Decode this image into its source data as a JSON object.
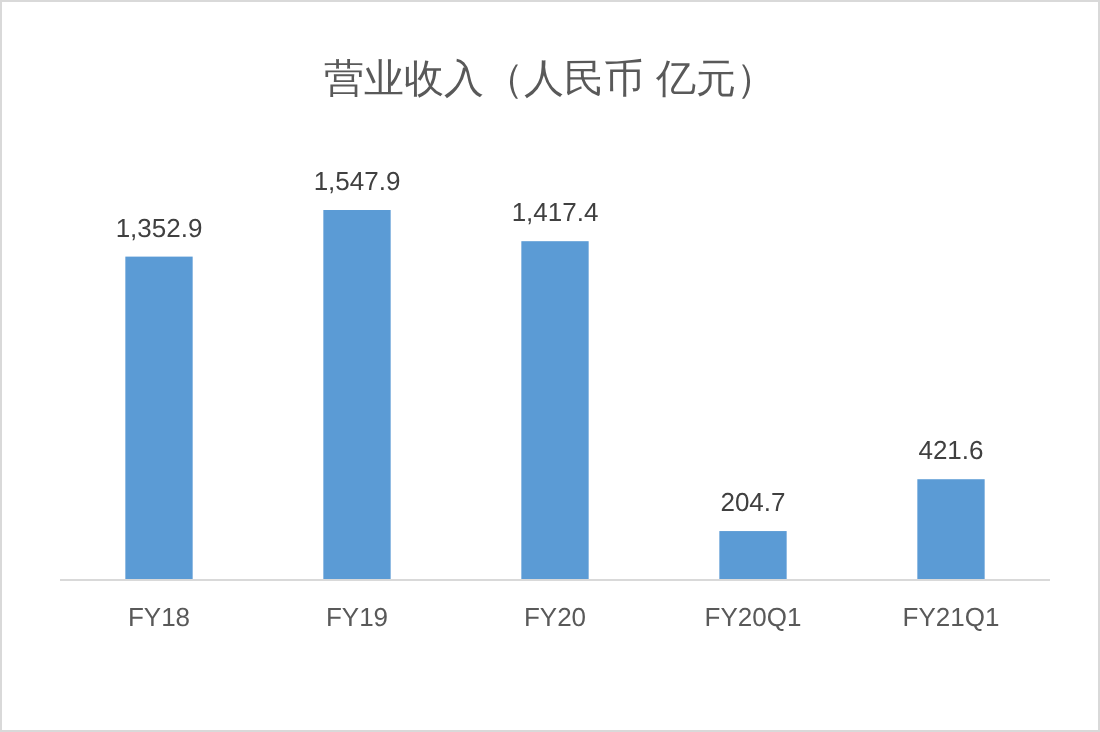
{
  "chart_data": {
    "type": "bar",
    "title": "营业收入（人民币 亿元）",
    "categories": [
      "FY18",
      "FY19",
      "FY20",
      "FY20Q1",
      "FY21Q1"
    ],
    "values": [
      1352.9,
      1547.9,
      1417.4,
      204.7,
      421.6
    ],
    "color": "#5b9bd5",
    "value_labels": [
      "1,352.9",
      "1,547.9",
      "1,417.4",
      "204.7",
      "421.6"
    ]
  }
}
